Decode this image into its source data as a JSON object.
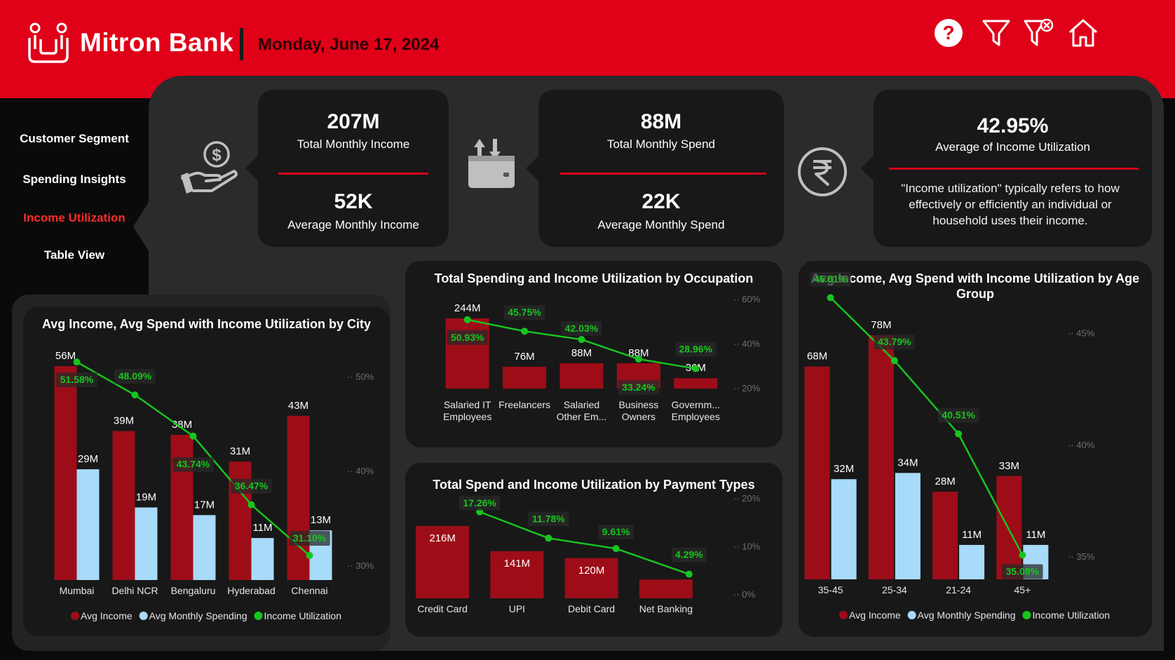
{
  "header": {
    "brand": "Mitron Bank",
    "date": "Monday, June 17, 2024",
    "icons": [
      "help-icon",
      "filter-icon",
      "clear-filter-icon",
      "home-icon"
    ],
    "color": "#e00018"
  },
  "sidebar": {
    "items": [
      {
        "label": "Customer Segment",
        "active": false
      },
      {
        "label": "Spending Insights",
        "active": false
      },
      {
        "label": "Income Utilization",
        "active": true
      },
      {
        "label": "Table View",
        "active": false
      }
    ]
  },
  "kpis": {
    "income": {
      "total_value": "207M",
      "total_label": "Total Monthly Income",
      "avg_value": "52K",
      "avg_label": "Average Monthly Income",
      "icon": "money-hand-icon"
    },
    "spend": {
      "total_value": "88M",
      "total_label": "Total Monthly Spend",
      "avg_value": "22K",
      "avg_label": "Average Monthly Spend",
      "icon": "wallet-transfer-icon"
    },
    "utilization": {
      "value": "42.95%",
      "label": "Average of Income Utilization",
      "note": "\"Income utilization\" typically refers to how effectively or efficiently an individual or household uses their income.",
      "icon": "rupee-icon"
    }
  },
  "colors": {
    "income": "#9d0d18",
    "spend": "#a8daf9",
    "utilization": "#17c51e",
    "card": "#181818",
    "panel": "#2b2b2b"
  },
  "legend": {
    "income": "Avg Income",
    "spend": "Avg Monthly Spending",
    "utilization": "Income Utilization"
  },
  "chart_data": [
    {
      "id": "city",
      "type": "bar",
      "title": "Avg Income, Avg Spend with Income Utilization by City",
      "categories": [
        "Mumbai",
        "Delhi NCR",
        "Bengaluru",
        "Hyderabad",
        "Chennai"
      ],
      "series": [
        {
          "name": "Avg Income",
          "values": [
            56,
            39,
            38,
            31,
            43
          ],
          "labels": [
            "56M",
            "39M",
            "38M",
            "31M",
            "43M"
          ]
        },
        {
          "name": "Avg Monthly Spending",
          "values": [
            29,
            19,
            17,
            11,
            13
          ],
          "labels": [
            "29M",
            "19M",
            "17M",
            "11M",
            "13M"
          ]
        },
        {
          "name": "Income Utilization",
          "values": [
            51.58,
            48.09,
            43.74,
            36.47,
            31.1
          ],
          "labels": [
            "51.58%",
            "48.09%",
            "43.74%",
            "36.47%",
            "31.10%"
          ]
        }
      ],
      "ylim": [
        0,
        56
      ],
      "y2_ticks": [
        "30%",
        "40%",
        "50%"
      ],
      "y2_values": [
        30,
        40,
        50
      ],
      "y2lim": [
        28.5,
        53
      ],
      "legend": "bottom"
    },
    {
      "id": "occupation",
      "type": "bar",
      "title": "Total Spending and Income Utilization by Occupation",
      "categories": [
        [
          "Salaried IT",
          "Employees"
        ],
        [
          "Freelancers"
        ],
        [
          "Salaried",
          "Other Em..."
        ],
        [
          "Business",
          "Owners"
        ],
        [
          "Governm...",
          "Employees"
        ]
      ],
      "series": [
        {
          "name": "Total Spending",
          "values": [
            244,
            76,
            88,
            88,
            36
          ],
          "labels": [
            "244M",
            "76M",
            "88M",
            "88M",
            "36M"
          ]
        },
        {
          "name": "Income Utilization",
          "values": [
            50.93,
            45.75,
            42.03,
            33.24,
            28.96
          ],
          "labels": [
            "50.93%",
            "45.75%",
            "42.03%",
            "33.24%",
            "28.96%"
          ]
        }
      ],
      "ylim": [
        0,
        244
      ],
      "y2_ticks": [
        "20%",
        "40%",
        "60%"
      ],
      "y2_values": [
        20,
        40,
        60
      ],
      "y2lim": [
        20,
        60
      ]
    },
    {
      "id": "payment",
      "type": "bar",
      "title": "Total Spend and Income Utilization by Payment Types",
      "categories": [
        "Credit Card",
        "UPI",
        "Debit Card",
        "Net Banking"
      ],
      "series": [
        {
          "name": "Total Spend",
          "values": [
            216,
            141,
            120,
            56
          ],
          "labels": [
            "216M",
            "141M",
            "120M",
            ""
          ]
        },
        {
          "name": "Income Utilization",
          "values": [
            17.26,
            11.78,
            9.61,
            4.29
          ],
          "labels": [
            "17.26%",
            "11.78%",
            "9.61%",
            "4.29%"
          ]
        }
      ],
      "ylim": [
        0,
        216
      ],
      "y2_ticks": [
        "0%",
        "10%",
        "20%"
      ],
      "y2_values": [
        0,
        10,
        20
      ],
      "y2lim": [
        0,
        20
      ]
    },
    {
      "id": "age",
      "type": "bar",
      "title": "Avg Income, Avg Spend with Income Utilization by Age Group",
      "categories": [
        "35-45",
        "25-34",
        "21-24",
        "45+"
      ],
      "series": [
        {
          "name": "Avg Income",
          "values": [
            68,
            78,
            28,
            33
          ],
          "labels": [
            "68M",
            "78M",
            "28M",
            "33M"
          ]
        },
        {
          "name": "Avg Monthly Spending",
          "values": [
            32,
            34,
            11,
            11
          ],
          "labels": [
            "32M",
            "34M",
            "11M",
            "11M"
          ]
        },
        {
          "name": "Income Utilization",
          "values": [
            46.61,
            43.79,
            40.51,
            35.08
          ],
          "labels": [
            "46.61%",
            "43.79%",
            "40.51%",
            "35.08%"
          ]
        }
      ],
      "ylim": [
        0,
        78
      ],
      "y2_ticks": [
        "35%",
        "40%",
        "45%"
      ],
      "y2_values": [
        35,
        40,
        45
      ],
      "y2lim": [
        35,
        47
      ],
      "legend": "bottom"
    }
  ]
}
